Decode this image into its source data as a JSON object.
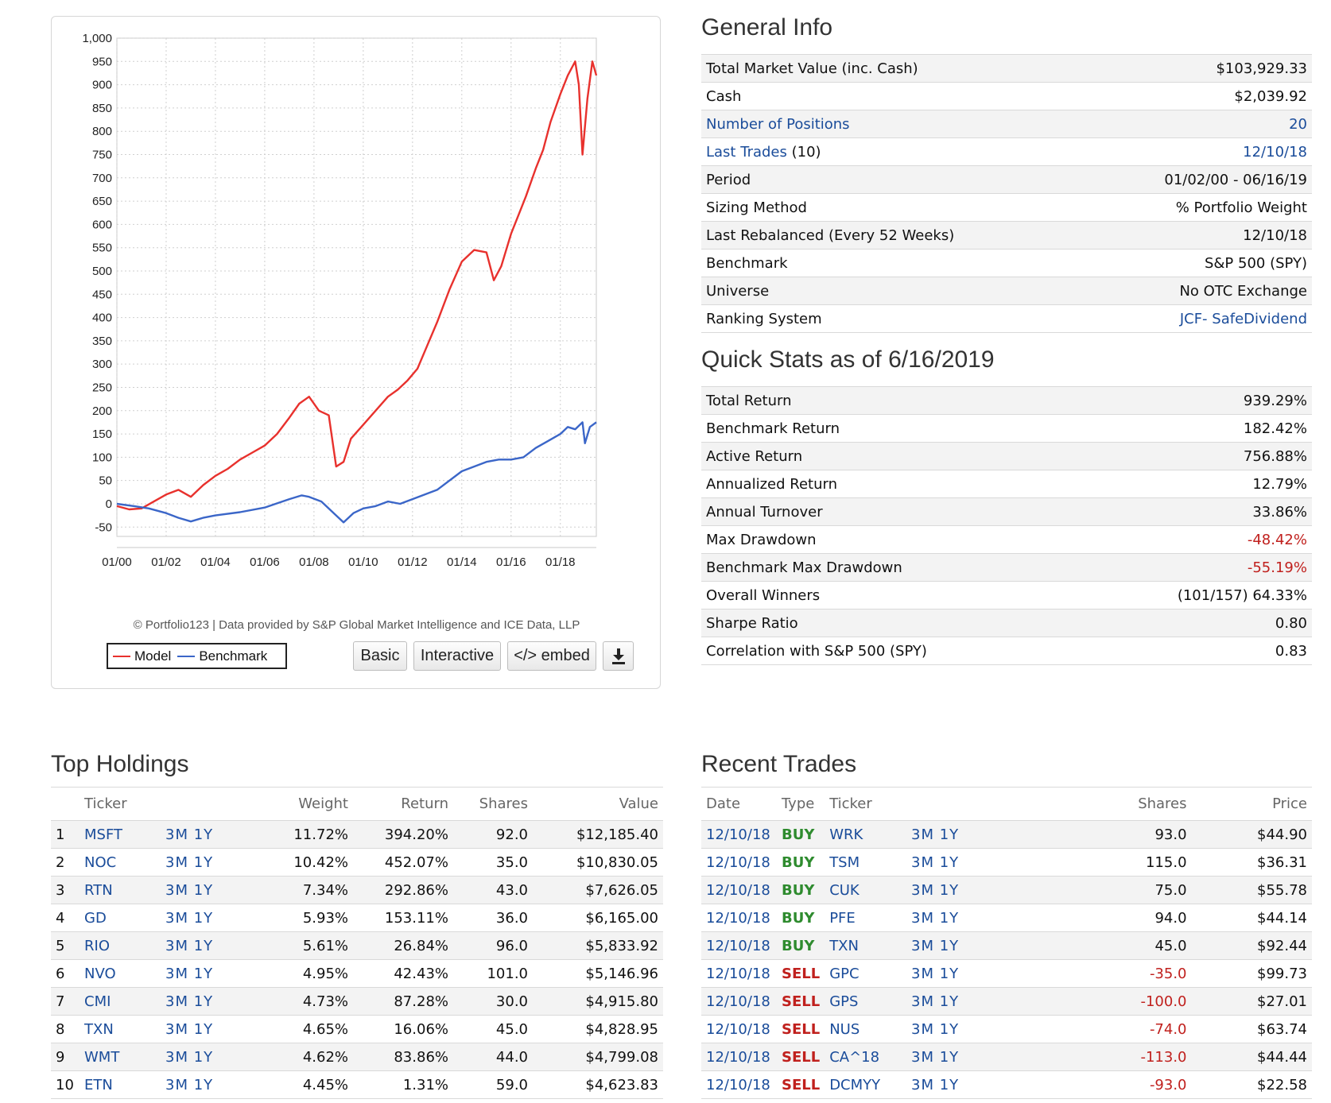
{
  "chart_data": {
    "type": "line",
    "x_ticks": [
      "01/00",
      "01/02",
      "01/04",
      "01/06",
      "01/08",
      "01/10",
      "01/12",
      "01/14",
      "01/16",
      "01/18"
    ],
    "y_ticks": [
      "1,000",
      "950",
      "900",
      "850",
      "800",
      "750",
      "700",
      "650",
      "600",
      "550",
      "500",
      "450",
      "400",
      "350",
      "300",
      "250",
      "200",
      "150",
      "100",
      "50",
      "0",
      "-50"
    ],
    "ylim": [
      -70,
      1000
    ],
    "xlim": [
      2000.0,
      2019.46
    ],
    "grid": true,
    "series": [
      {
        "name": "Model",
        "color": "#e8312d",
        "x": [
          2000.0,
          2000.5,
          2001.0,
          2001.5,
          2002.0,
          2002.5,
          2003.0,
          2003.5,
          2004.0,
          2004.5,
          2005.0,
          2005.5,
          2006.0,
          2006.5,
          2007.0,
          2007.4,
          2007.8,
          2008.2,
          2008.6,
          2008.9,
          2009.2,
          2009.5,
          2010.0,
          2010.5,
          2011.0,
          2011.4,
          2011.8,
          2012.2,
          2012.6,
          2013.0,
          2013.5,
          2014.0,
          2014.5,
          2015.0,
          2015.3,
          2015.6,
          2016.0,
          2016.3,
          2016.6,
          2017.0,
          2017.3,
          2017.6,
          2018.0,
          2018.3,
          2018.6,
          2018.75,
          2018.9,
          2019.1,
          2019.3,
          2019.46
        ],
        "y": [
          -5,
          -12,
          -10,
          5,
          20,
          30,
          15,
          40,
          60,
          75,
          95,
          110,
          125,
          150,
          185,
          215,
          230,
          200,
          190,
          80,
          90,
          140,
          170,
          200,
          230,
          245,
          265,
          290,
          340,
          390,
          460,
          520,
          545,
          540,
          480,
          510,
          580,
          620,
          660,
          720,
          760,
          820,
          880,
          920,
          950,
          900,
          750,
          870,
          950,
          920
        ]
      },
      {
        "name": "Benchmark",
        "color": "#3b66c8",
        "x": [
          2000.0,
          2000.7,
          2001.3,
          2002.0,
          2002.5,
          2003.0,
          2003.5,
          2004.0,
          2005.0,
          2006.0,
          2007.0,
          2007.5,
          2007.8,
          2008.3,
          2008.8,
          2009.2,
          2009.6,
          2010.0,
          2010.5,
          2011.0,
          2011.5,
          2012.0,
          2012.5,
          2013.0,
          2014.0,
          2015.0,
          2015.5,
          2016.0,
          2016.5,
          2017.0,
          2017.5,
          2018.0,
          2018.3,
          2018.6,
          2018.9,
          2019.0,
          2019.2,
          2019.46
        ],
        "y": [
          0,
          -5,
          -10,
          -20,
          -30,
          -38,
          -30,
          -25,
          -18,
          -8,
          10,
          18,
          15,
          5,
          -20,
          -40,
          -20,
          -10,
          -5,
          5,
          0,
          10,
          20,
          30,
          70,
          90,
          95,
          95,
          100,
          120,
          135,
          150,
          165,
          160,
          175,
          130,
          165,
          175
        ]
      }
    ]
  },
  "chart_ui": {
    "credit": "© Portfolio123 | Data provided by S&P Global Market Intelligence and ICE Data, LLP",
    "legend_model": "Model",
    "legend_benchmark": "Benchmark",
    "btn_basic": "Basic",
    "btn_interactive": "Interactive",
    "btn_embed": "</> embed",
    "download_icon": "download-icon"
  },
  "general_info": {
    "title": "General Info",
    "rows": [
      {
        "label": "Total Market Value (inc. Cash)",
        "value": "$103,929.33"
      },
      {
        "label": "Cash",
        "value": "$2,039.92"
      },
      {
        "label": "Number of Positions",
        "value": "20"
      },
      {
        "label": "Last Trades",
        "label_suffix": " (10)",
        "value": "12/10/18"
      },
      {
        "label": "Period",
        "value": "01/02/00 - 06/16/19"
      },
      {
        "label": "Sizing Method",
        "value": "% Portfolio Weight"
      },
      {
        "label": "Last Rebalanced (Every 52 Weeks)",
        "value": "12/10/18"
      },
      {
        "label": "Benchmark",
        "value": "S&P 500 (SPY)"
      },
      {
        "label": "Universe",
        "value": "No OTC Exchange"
      },
      {
        "label": "Ranking System",
        "value": "JCF- SafeDividend"
      }
    ]
  },
  "quick_stats": {
    "title": "Quick Stats as of 6/16/2019",
    "rows": [
      {
        "label": "Total Return",
        "value": "939.29%"
      },
      {
        "label": "Benchmark Return",
        "value": "182.42%"
      },
      {
        "label": "Active Return",
        "value": "756.88%"
      },
      {
        "label": "Annualized Return",
        "value": "12.79%"
      },
      {
        "label": "Annual Turnover",
        "value": "33.86%"
      },
      {
        "label": "Max Drawdown",
        "value": "-48.42%"
      },
      {
        "label": "Benchmark Max Drawdown",
        "value": "-55.19%"
      },
      {
        "label": "Overall Winners",
        "value": "(101/157) 64.33%"
      },
      {
        "label": "Sharpe Ratio",
        "value": "0.80"
      },
      {
        "label": "Correlation with S&P 500 (SPY)",
        "value": "0.83"
      }
    ]
  },
  "top_holdings": {
    "title": "Top Holdings",
    "headers": {
      "ticker": "Ticker",
      "weight": "Weight",
      "return": "Return",
      "shares": "Shares",
      "value": "Value"
    },
    "period_3m": "3M",
    "period_1y": "1Y",
    "rows": [
      {
        "n": "1",
        "ticker": "MSFT",
        "weight": "11.72%",
        "ret": "394.20%",
        "shares": "92.0",
        "value": "$12,185.40"
      },
      {
        "n": "2",
        "ticker": "NOC",
        "weight": "10.42%",
        "ret": "452.07%",
        "shares": "35.0",
        "value": "$10,830.05"
      },
      {
        "n": "3",
        "ticker": "RTN",
        "weight": "7.34%",
        "ret": "292.86%",
        "shares": "43.0",
        "value": "$7,626.05"
      },
      {
        "n": "4",
        "ticker": "GD",
        "weight": "5.93%",
        "ret": "153.11%",
        "shares": "36.0",
        "value": "$6,165.00"
      },
      {
        "n": "5",
        "ticker": "RIO",
        "weight": "5.61%",
        "ret": "26.84%",
        "shares": "96.0",
        "value": "$5,833.92"
      },
      {
        "n": "6",
        "ticker": "NVO",
        "weight": "4.95%",
        "ret": "42.43%",
        "shares": "101.0",
        "value": "$5,146.96"
      },
      {
        "n": "7",
        "ticker": "CMI",
        "weight": "4.73%",
        "ret": "87.28%",
        "shares": "30.0",
        "value": "$4,915.80"
      },
      {
        "n": "8",
        "ticker": "TXN",
        "weight": "4.65%",
        "ret": "16.06%",
        "shares": "45.0",
        "value": "$4,828.95"
      },
      {
        "n": "9",
        "ticker": "WMT",
        "weight": "4.62%",
        "ret": "83.86%",
        "shares": "44.0",
        "value": "$4,799.08"
      },
      {
        "n": "10",
        "ticker": "ETN",
        "weight": "4.45%",
        "ret": "1.31%",
        "shares": "59.0",
        "value": "$4,623.83"
      }
    ]
  },
  "recent_trades": {
    "title": "Recent Trades",
    "headers": {
      "date": "Date",
      "type": "Type",
      "ticker": "Ticker",
      "shares": "Shares",
      "price": "Price"
    },
    "period_3m": "3M",
    "period_1y": "1Y",
    "rows": [
      {
        "date": "12/10/18",
        "type": "BUY",
        "ticker": "WRK",
        "shares": "93.0",
        "price": "$44.90"
      },
      {
        "date": "12/10/18",
        "type": "BUY",
        "ticker": "TSM",
        "shares": "115.0",
        "price": "$36.31"
      },
      {
        "date": "12/10/18",
        "type": "BUY",
        "ticker": "CUK",
        "shares": "75.0",
        "price": "$55.78"
      },
      {
        "date": "12/10/18",
        "type": "BUY",
        "ticker": "PFE",
        "shares": "94.0",
        "price": "$44.14"
      },
      {
        "date": "12/10/18",
        "type": "BUY",
        "ticker": "TXN",
        "shares": "45.0",
        "price": "$92.44"
      },
      {
        "date": "12/10/18",
        "type": "SELL",
        "ticker": "GPC",
        "shares": "-35.0",
        "price": "$99.73"
      },
      {
        "date": "12/10/18",
        "type": "SELL",
        "ticker": "GPS",
        "shares": "-100.0",
        "price": "$27.01"
      },
      {
        "date": "12/10/18",
        "type": "SELL",
        "ticker": "NUS",
        "shares": "-74.0",
        "price": "$63.74"
      },
      {
        "date": "12/10/18",
        "type": "SELL",
        "ticker": "CA^18",
        "shares": "-113.0",
        "price": "$44.44"
      },
      {
        "date": "12/10/18",
        "type": "SELL",
        "ticker": "DCMYY",
        "shares": "-93.0",
        "price": "$22.58"
      }
    ]
  },
  "colors": {
    "link": "#1a4c9a",
    "negative": "#c0201d",
    "buy": "#2e8b2e",
    "sell": "#c0201d"
  }
}
